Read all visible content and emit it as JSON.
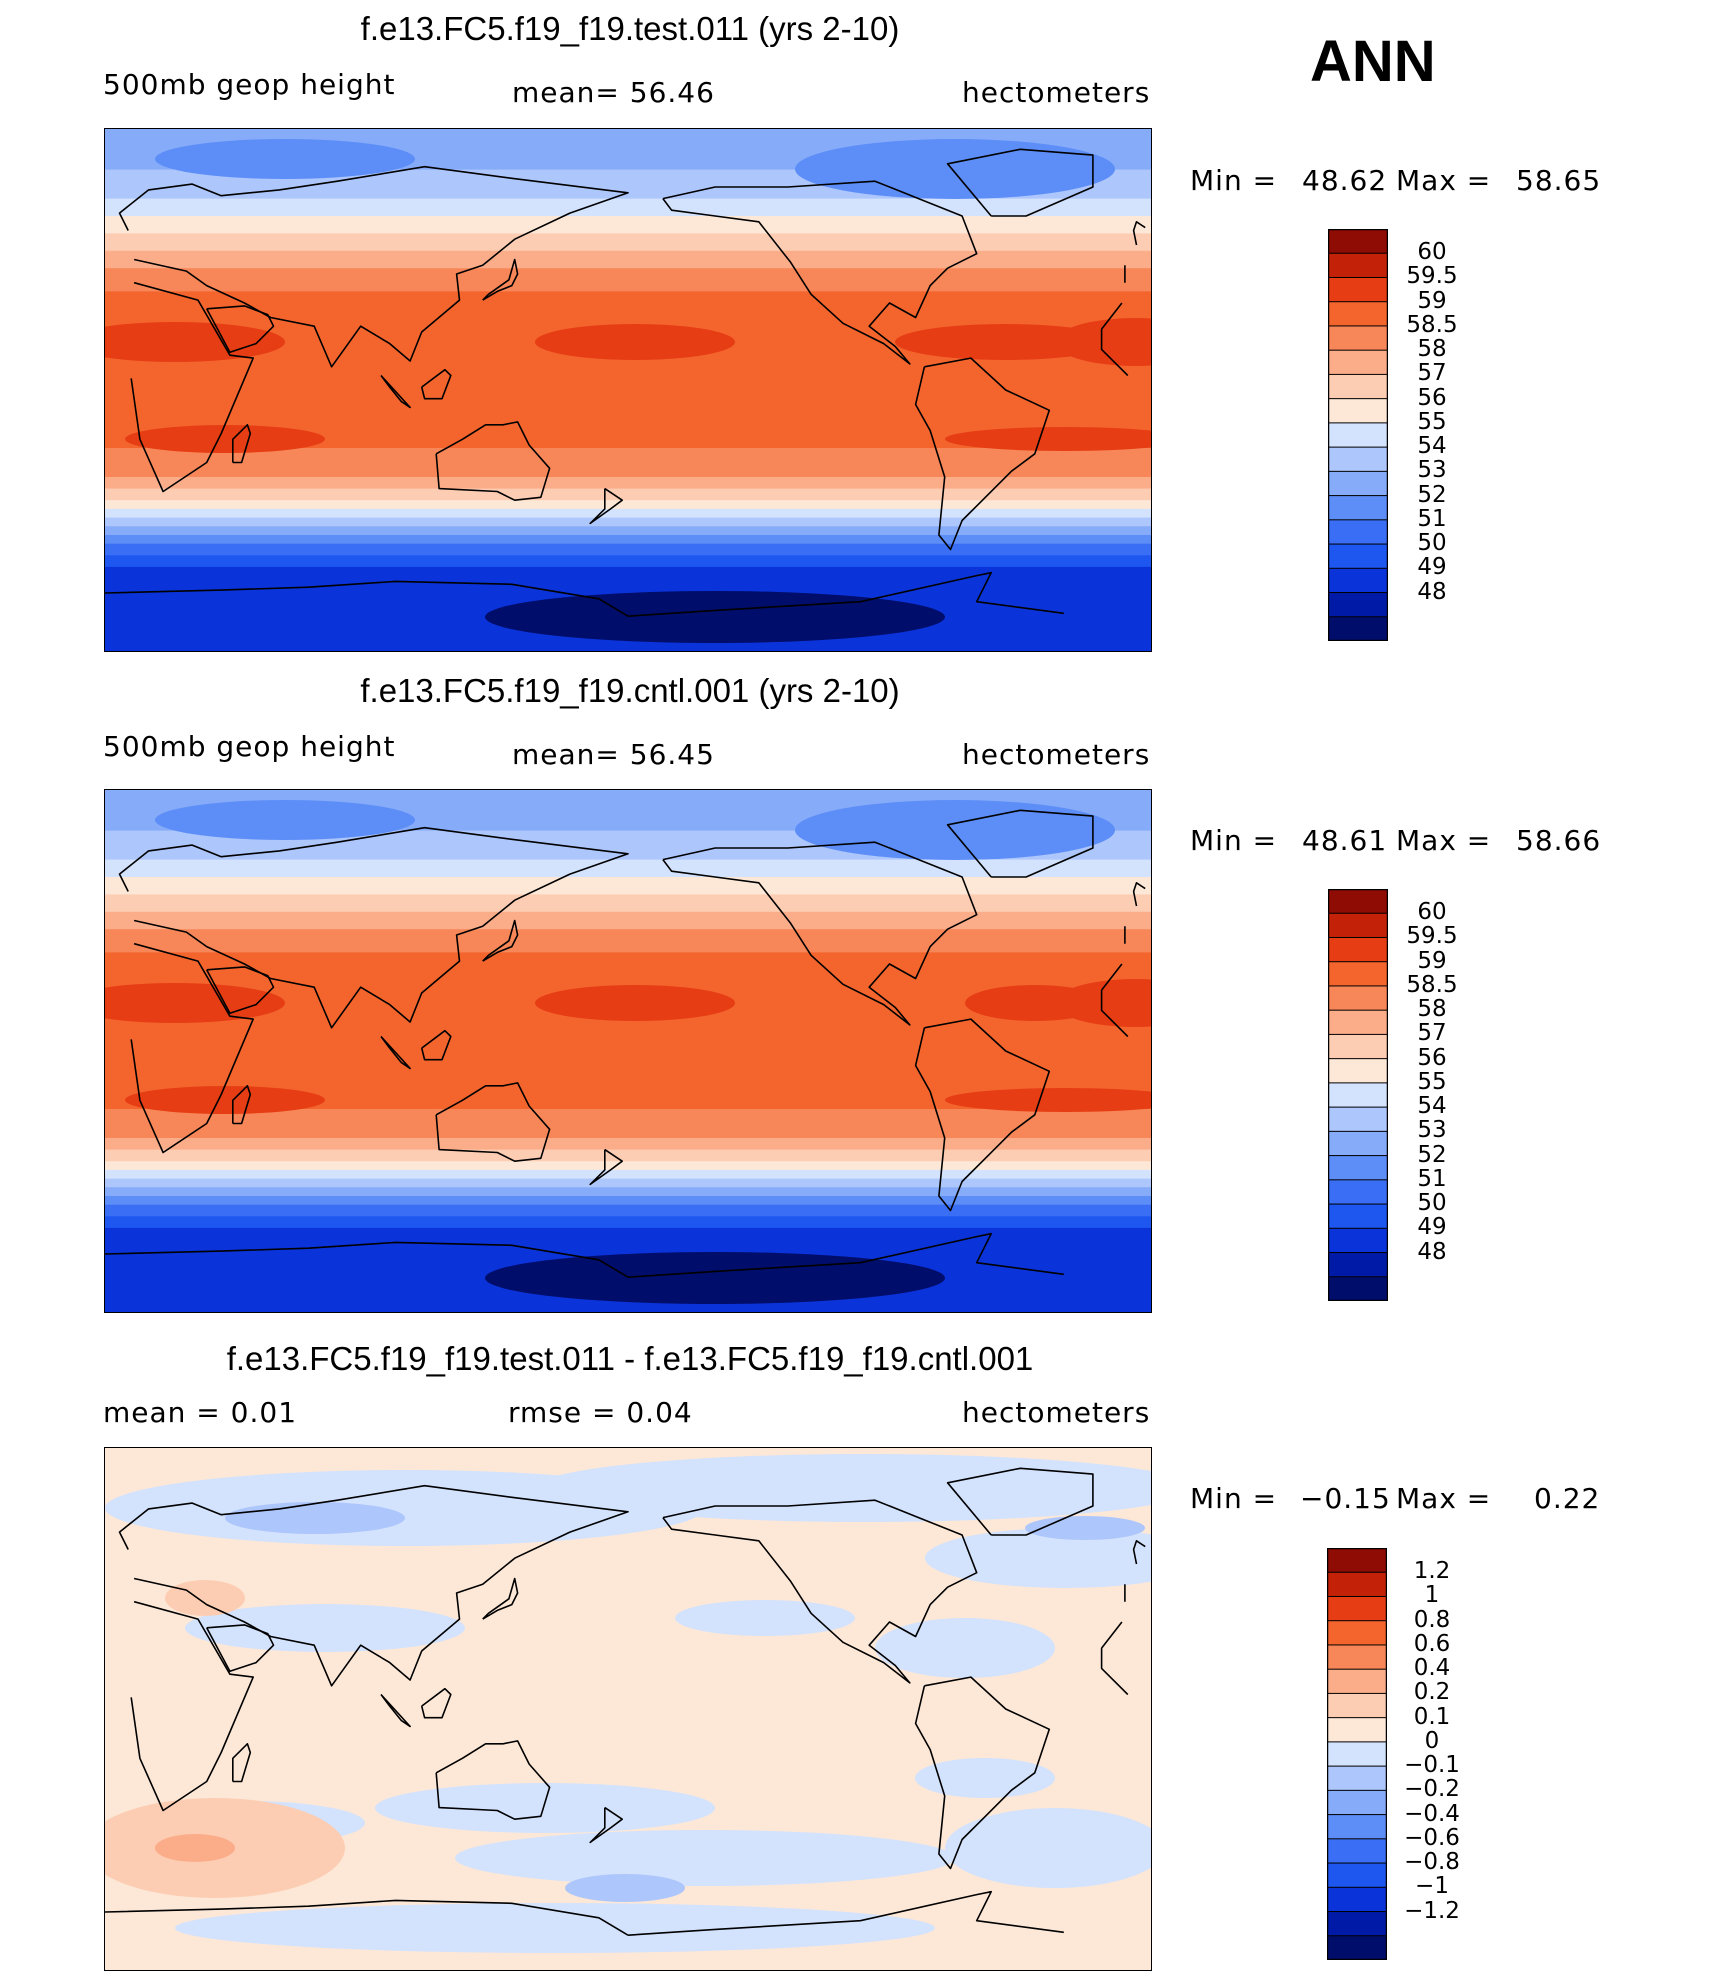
{
  "season": "ANN",
  "colors": {
    "abs_palette": [
      "#000d6b",
      "#001aa8",
      "#0a33d9",
      "#1e56f0",
      "#3a6ff5",
      "#5d8ef7",
      "#86abf9",
      "#adc6fb",
      "#d3e2fd",
      "#fde8d7",
      "#fccdb3",
      "#fbad8a",
      "#f78758",
      "#f4652e",
      "#e63d14",
      "#c42208",
      "#8e0c03"
    ],
    "diff_palette": [
      "#000d6b",
      "#001aa8",
      "#0a33d9",
      "#1e56f0",
      "#3a6ff5",
      "#5d8ef7",
      "#86abf9",
      "#adc6fb",
      "#d3e2fd",
      "#fde8d7",
      "#fccdb3",
      "#fbad8a",
      "#f78758",
      "#f4652e",
      "#e63d14",
      "#c42208",
      "#8e0c03"
    ]
  },
  "panels": [
    {
      "title": "f.e13.FC5.f19_f19.test.011 (yrs 2-10)",
      "left_label": "500mb  geop  height",
      "center_label": "mean=   56.46",
      "right_label": "hectometers",
      "min_label": "Min  =",
      "min_value": "48.62",
      "max_label": "Max  =",
      "max_value": "58.65",
      "cbar_labels": [
        "60",
        "59.5",
        "59",
        "58.5",
        "58",
        "57",
        "56",
        "55",
        "54",
        "53",
        "52",
        "51",
        "50",
        "49",
        "48"
      ],
      "kind": "abs"
    },
    {
      "title": "f.e13.FC5.f19_f19.cntl.001 (yrs 2-10)",
      "left_label": "500mb  geop  height",
      "center_label": "mean=   56.45",
      "right_label": "hectometers",
      "min_label": "Min  =",
      "min_value": "48.61",
      "max_label": "Max  =",
      "max_value": "58.66",
      "cbar_labels": [
        "60",
        "59.5",
        "59",
        "58.5",
        "58",
        "57",
        "56",
        "55",
        "54",
        "53",
        "52",
        "51",
        "50",
        "49",
        "48"
      ],
      "kind": "abs"
    },
    {
      "title": "f.e13.FC5.f19_f19.test.011 - f.e13.FC5.f19_f19.cntl.001",
      "left_label": "mean  =      0.01",
      "center_label": "rmse  =     0.04",
      "right_label": "hectometers",
      "min_label": "Min  =",
      "min_value": "−0.15",
      "max_label": "Max  =",
      "max_value": "0.22",
      "cbar_labels": [
        "1.2",
        "1",
        "0.8",
        "0.6",
        "0.4",
        "0.2",
        "0.1",
        "0",
        "−0.1",
        "−0.2",
        "−0.4",
        "−0.6",
        "−0.8",
        "−1",
        "−1.2"
      ],
      "kind": "diff"
    }
  ]
}
